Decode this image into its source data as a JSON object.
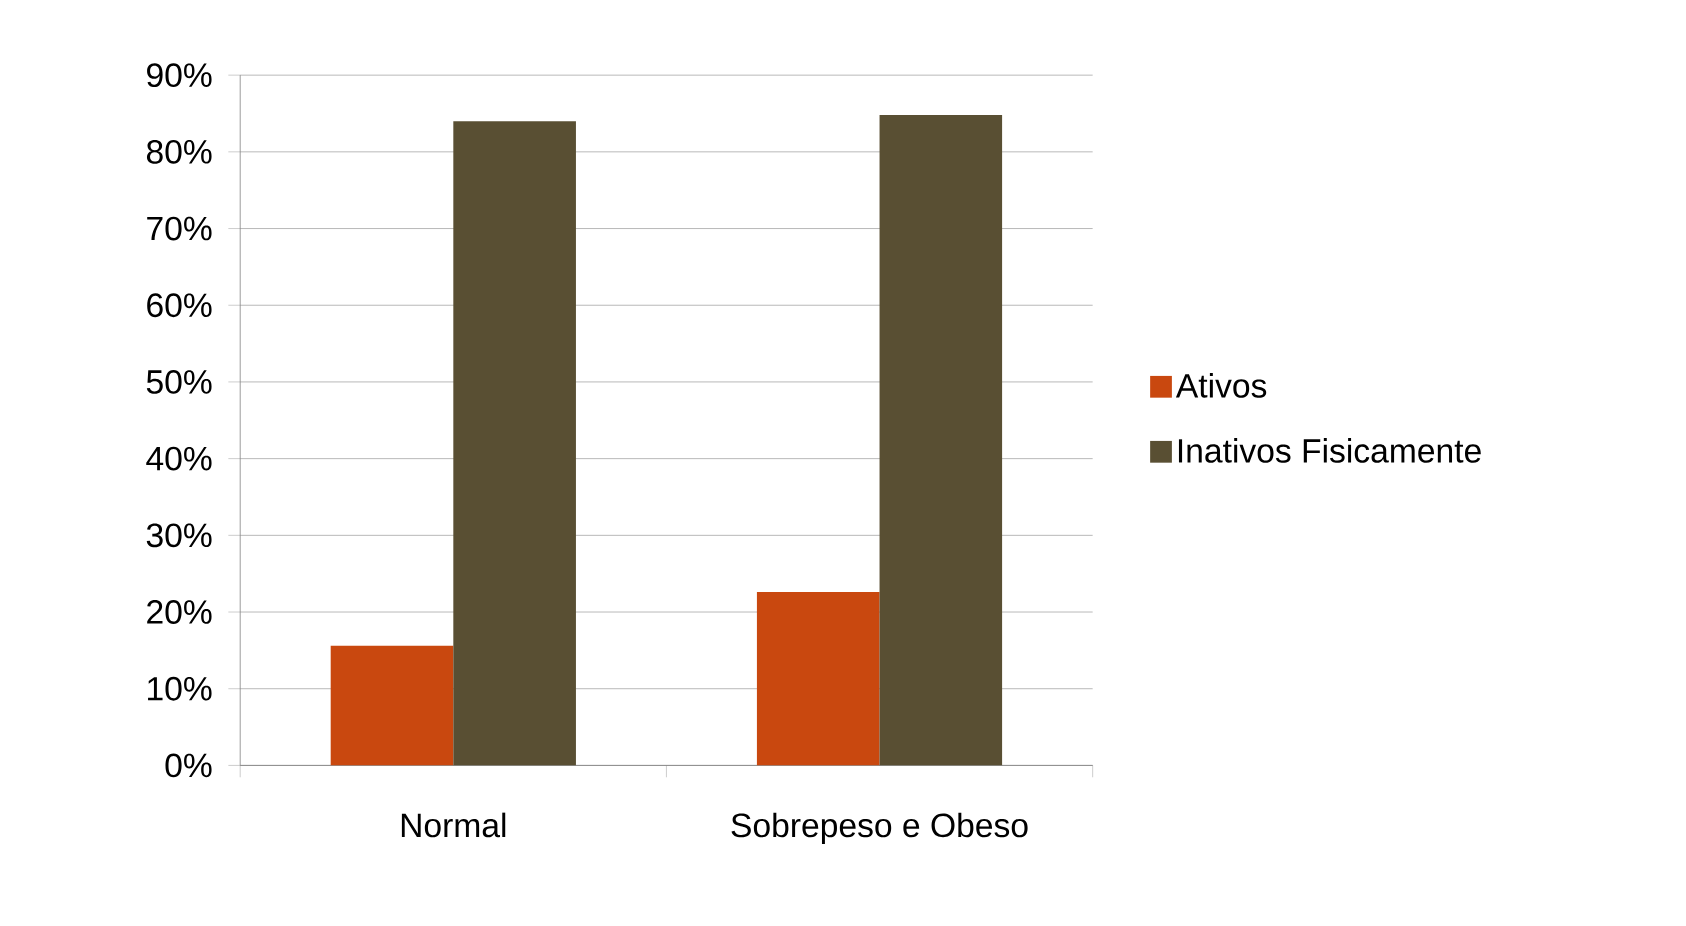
{
  "chart_data": {
    "type": "bar",
    "categories": [
      "Normal",
      "Sobrepeso e Obeso"
    ],
    "series": [
      {
        "name": "Ativos",
        "color": "#c9480f",
        "values": [
          15.6,
          22.6
        ]
      },
      {
        "name": "Inativos Fisicamente",
        "color": "#594f33",
        "values": [
          84.0,
          84.8
        ]
      }
    ],
    "ylim": [
      0,
      90
    ],
    "yticks": [
      {
        "value": 0,
        "label": "0%"
      },
      {
        "value": 10,
        "label": "10%"
      },
      {
        "value": 20,
        "label": "20%"
      },
      {
        "value": 30,
        "label": "30%"
      },
      {
        "value": 40,
        "label": "40%"
      },
      {
        "value": 50,
        "label": "50%"
      },
      {
        "value": 60,
        "label": "60%"
      },
      {
        "value": 70,
        "label": "70%"
      },
      {
        "value": 80,
        "label": "80%"
      },
      {
        "value": 90,
        "label": "90%"
      }
    ],
    "grid": "y",
    "legend": "right"
  }
}
